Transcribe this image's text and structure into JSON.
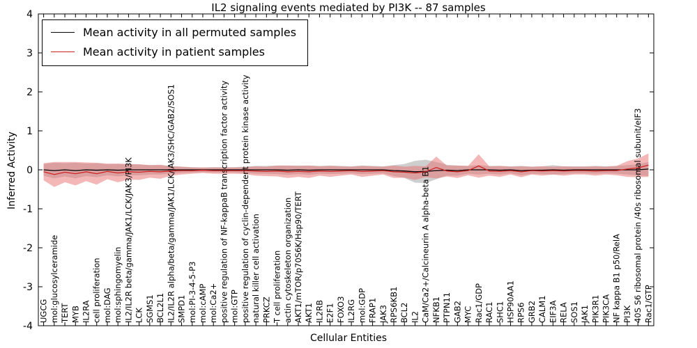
{
  "title": "IL2 signaling events mediated by PI3K -- 87 samples",
  "axes": {
    "xlabel": "Cellular Entities",
    "ylabel": "Inferred Activity"
  },
  "legend": {
    "position": "upper left"
  },
  "chart_data": {
    "type": "line",
    "title": "IL2 signaling events mediated by PI3K -- 87 samples",
    "xlabel": "Cellular Entities",
    "ylabel": "Inferred Activity",
    "ylim": [
      -4,
      4
    ],
    "yticks": [
      -4,
      -3,
      -2,
      -1,
      0,
      1,
      2,
      3,
      4
    ],
    "grid": false,
    "legend_position": "upper left",
    "categories": [
      "UGCG",
      "mol:glucosylceramide",
      "TERT",
      "MYB",
      "IL2RA",
      "cell proliferation",
      "mol:DAG",
      "mol:sphingomyelin",
      "IL2/IL2R beta/gamma/JAK1/LCK/JAK3/PI3K",
      "LCK",
      "SGMS1",
      "BCL2L1",
      "IL2/IL2R alpha/beta/gamma/JAK1/LCK/JAK3/SHC/GAB2/SOS1",
      "SMPD1",
      "mol:PI-3-4-5-P3",
      "mol:cAMP",
      "mol:Ca2+",
      "positive regulation of NF-kappaB transcription factor activity",
      "mol:GTP",
      "positive regulation of cyclin-dependent protein kinase activity",
      "natural killer cell activation",
      "PRKCZ",
      "T cell proliferation",
      "actin cytoskeleton organization",
      "AKT1/mTOR/p70S6K/Hsp90/TERT",
      "AKT1",
      "IL2RB",
      "E2F1",
      "FOXO3",
      "IL2RG",
      "mol:GDP",
      "FRAP1",
      "JAK3",
      "RPS6KB1",
      "BCL2",
      "IL2",
      "CaM/Ca2+/Calcineurin A alpha-beta B1",
      "NFKB1",
      "PTPN11",
      "GAB2",
      "MYC",
      "Rac1/GDP",
      "RAC1",
      "SHC1",
      "HSP90AA1",
      "RPS6",
      "GRB2",
      "CALM1",
      "EIF3A",
      "RELA",
      "SOS1",
      "JAK1",
      "PIK3R1",
      "PIK3CA",
      "NF kappa B1 p50/RelA",
      "PI3K",
      "40S S6 ribosomal protein /40s ribosomal subunit/eIF3",
      "Rac1/GTP"
    ],
    "series": [
      {
        "id": "permuted",
        "name": "Mean activity in all permuted samples",
        "color": "#000000",
        "band_color": "#9e9e9e",
        "values": [
          0,
          -0.02,
          0,
          -0.02,
          0,
          -0.01,
          0,
          -0.01,
          0,
          0,
          0,
          0,
          0,
          0,
          0,
          0,
          0,
          0,
          0,
          0,
          0,
          0,
          0,
          -0.01,
          0,
          -0.01,
          0,
          0,
          0,
          0,
          0,
          0,
          0,
          -0.02,
          -0.03,
          -0.05,
          -0.04,
          -0.02,
          -0.01,
          -0.02,
          0,
          0,
          0,
          -0.01,
          0,
          -0.02,
          -0.01,
          -0.01,
          0,
          -0.01,
          0,
          0,
          0,
          0,
          0,
          0,
          0,
          0.02
        ],
        "band": [
          0.15,
          0.2,
          0.17,
          0.2,
          0.16,
          0.18,
          0.14,
          0.16,
          0.14,
          0.14,
          0.12,
          0.12,
          0.1,
          0.08,
          0.07,
          0.06,
          0.07,
          0.07,
          0.07,
          0.08,
          0.1,
          0.1,
          0.11,
          0.12,
          0.11,
          0.12,
          0.1,
          0.11,
          0.1,
          0.09,
          0.11,
          0.1,
          0.09,
          0.14,
          0.18,
          0.28,
          0.3,
          0.22,
          0.14,
          0.13,
          0.1,
          0.12,
          0.1,
          0.11,
          0.09,
          0.12,
          0.09,
          0.1,
          0.12,
          0.1,
          0.09,
          0.09,
          0.1,
          0.09,
          0.1,
          0.12,
          0.14,
          0.18
        ]
      },
      {
        "id": "patient",
        "name": "Mean activity in patient samples",
        "color": "#cc2222",
        "band_color": "#e87070",
        "values": [
          -0.05,
          -0.12,
          -0.06,
          -0.1,
          -0.05,
          -0.1,
          -0.04,
          -0.08,
          -0.05,
          -0.06,
          -0.04,
          -0.05,
          -0.03,
          -0.02,
          -0.02,
          -0.01,
          -0.02,
          -0.02,
          -0.02,
          -0.02,
          -0.03,
          -0.04,
          -0.03,
          -0.05,
          -0.04,
          -0.05,
          -0.03,
          -0.04,
          -0.03,
          -0.02,
          -0.04,
          -0.03,
          -0.02,
          -0.05,
          -0.06,
          -0.08,
          -0.05,
          0.06,
          -0.03,
          -0.05,
          -0.02,
          0.1,
          -0.03,
          -0.04,
          -0.02,
          -0.05,
          -0.02,
          -0.03,
          -0.02,
          -0.03,
          -0.02,
          -0.02,
          -0.03,
          -0.02,
          -0.02,
          0.02,
          0.05,
          0.12
        ],
        "band": [
          0.22,
          0.32,
          0.26,
          0.3,
          0.24,
          0.28,
          0.2,
          0.24,
          0.2,
          0.2,
          0.16,
          0.18,
          0.12,
          0.1,
          0.08,
          0.07,
          0.08,
          0.08,
          0.08,
          0.09,
          0.12,
          0.12,
          0.14,
          0.16,
          0.14,
          0.16,
          0.12,
          0.14,
          0.12,
          0.1,
          0.14,
          0.12,
          0.1,
          0.16,
          0.14,
          0.18,
          0.14,
          0.28,
          0.14,
          0.16,
          0.12,
          0.3,
          0.12,
          0.14,
          0.1,
          0.14,
          0.1,
          0.12,
          0.1,
          0.12,
          0.1,
          0.1,
          0.12,
          0.1,
          0.12,
          0.2,
          0.24,
          0.3
        ]
      }
    ]
  }
}
